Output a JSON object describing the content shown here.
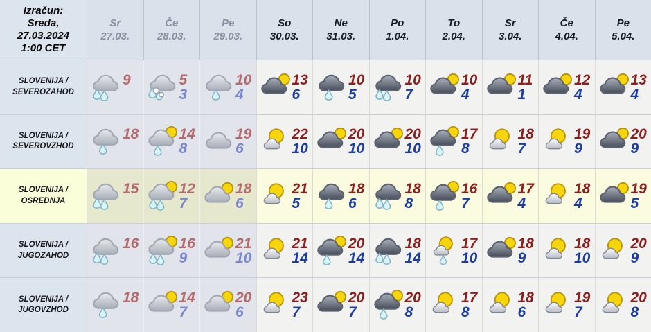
{
  "header": {
    "computed": [
      "Izračun:",
      "Sreda,",
      "27.03.2024",
      "1:00 CET"
    ]
  },
  "columns": [
    {
      "day": "Sr",
      "date": "27.03.",
      "past": true
    },
    {
      "day": "Če",
      "date": "28.03.",
      "past": true
    },
    {
      "day": "Pe",
      "date": "29.03.",
      "past": true
    },
    {
      "day": "So",
      "date": "30.03.",
      "past": false
    },
    {
      "day": "Ne",
      "date": "31.03.",
      "past": false
    },
    {
      "day": "Po",
      "date": "1.04.",
      "past": false
    },
    {
      "day": "To",
      "date": "2.04.",
      "past": false
    },
    {
      "day": "Sr",
      "date": "3.04.",
      "past": false
    },
    {
      "day": "Če",
      "date": "4.04.",
      "past": false
    },
    {
      "day": "Pe",
      "date": "5.04.",
      "past": false
    }
  ],
  "rows": [
    {
      "region": [
        "SLOVENIJA /",
        "SEVEROZAHOD"
      ],
      "highlight": false,
      "cells": [
        {
          "icon": "cloud-rain-2",
          "tmax": "9",
          "tmin": ""
        },
        {
          "icon": "cloud-sleet",
          "tmax": "5",
          "tmin": "3"
        },
        {
          "icon": "cloud-rain-1",
          "tmax": "10",
          "tmin": "4"
        },
        {
          "icon": "cloud-sun",
          "tmax": "13",
          "tmin": "6"
        },
        {
          "icon": "cloud-rain-1",
          "tmax": "10",
          "tmin": "5"
        },
        {
          "icon": "cloud-rain-2",
          "tmax": "10",
          "tmin": "7"
        },
        {
          "icon": "cloud-sun",
          "tmax": "10",
          "tmin": "4"
        },
        {
          "icon": "cloud-sun",
          "tmax": "11",
          "tmin": "1"
        },
        {
          "icon": "cloud-sun",
          "tmax": "12",
          "tmin": "4"
        },
        {
          "icon": "cloud-sun",
          "tmax": "13",
          "tmin": "4"
        }
      ]
    },
    {
      "region": [
        "SLOVENIJA /",
        "SEVEROVZHOD"
      ],
      "highlight": false,
      "cells": [
        {
          "icon": "cloud-rain-1",
          "tmax": "18",
          "tmin": ""
        },
        {
          "icon": "cloud-sun-rain-1",
          "tmax": "14",
          "tmin": "8"
        },
        {
          "icon": "cloud",
          "tmax": "19",
          "tmin": "6"
        },
        {
          "icon": "sun-cloud",
          "tmax": "22",
          "tmin": "10"
        },
        {
          "icon": "cloud-sun",
          "tmax": "20",
          "tmin": "10"
        },
        {
          "icon": "cloud-sun",
          "tmax": "20",
          "tmin": "10"
        },
        {
          "icon": "cloud-sun-rain-1",
          "tmax": "17",
          "tmin": "8"
        },
        {
          "icon": "sun-cloud",
          "tmax": "18",
          "tmin": "7"
        },
        {
          "icon": "sun-cloud",
          "tmax": "19",
          "tmin": "9"
        },
        {
          "icon": "cloud-sun",
          "tmax": "20",
          "tmin": "9"
        }
      ]
    },
    {
      "region": [
        "SLOVENIJA /",
        "OSREDNJA"
      ],
      "highlight": true,
      "cells": [
        {
          "icon": "cloud-rain-2",
          "tmax": "15",
          "tmin": ""
        },
        {
          "icon": "cloud-sun-rain-2",
          "tmax": "12",
          "tmin": "7"
        },
        {
          "icon": "cloud-sun",
          "tmax": "18",
          "tmin": "6"
        },
        {
          "icon": "sun-cloud",
          "tmax": "21",
          "tmin": "5"
        },
        {
          "icon": "cloud-rain-1",
          "tmax": "18",
          "tmin": "6"
        },
        {
          "icon": "cloud-rain-2",
          "tmax": "18",
          "tmin": "8"
        },
        {
          "icon": "cloud-sun-rain-1",
          "tmax": "16",
          "tmin": "7"
        },
        {
          "icon": "cloud-sun",
          "tmax": "17",
          "tmin": "4"
        },
        {
          "icon": "sun-cloud",
          "tmax": "18",
          "tmin": "4"
        },
        {
          "icon": "cloud-sun",
          "tmax": "19",
          "tmin": "5"
        }
      ]
    },
    {
      "region": [
        "SLOVENIJA /",
        "JUGOZAHOD"
      ],
      "highlight": false,
      "cells": [
        {
          "icon": "cloud-rain-2",
          "tmax": "16",
          "tmin": ""
        },
        {
          "icon": "cloud-sun-rain-2",
          "tmax": "16",
          "tmin": "9"
        },
        {
          "icon": "cloud-sun",
          "tmax": "21",
          "tmin": "10"
        },
        {
          "icon": "sun-cloud",
          "tmax": "21",
          "tmin": "14"
        },
        {
          "icon": "cloud-sun-rain-1",
          "tmax": "20",
          "tmin": "14"
        },
        {
          "icon": "cloud-rain-2",
          "tmax": "18",
          "tmin": "14"
        },
        {
          "icon": "sun-cloud-rain-1",
          "tmax": "17",
          "tmin": "10"
        },
        {
          "icon": "cloud-sun",
          "tmax": "18",
          "tmin": "9"
        },
        {
          "icon": "sun-cloud",
          "tmax": "18",
          "tmin": "10"
        },
        {
          "icon": "sun-cloud",
          "tmax": "20",
          "tmin": "9"
        }
      ]
    },
    {
      "region": [
        "SLOVENIJA /",
        "JUGOVZHOD"
      ],
      "highlight": false,
      "cells": [
        {
          "icon": "cloud-rain-1",
          "tmax": "18",
          "tmin": ""
        },
        {
          "icon": "cloud-sun",
          "tmax": "14",
          "tmin": "7"
        },
        {
          "icon": "cloud-sun",
          "tmax": "20",
          "tmin": "6"
        },
        {
          "icon": "sun-cloud",
          "tmax": "23",
          "tmin": "7"
        },
        {
          "icon": "cloud-sun",
          "tmax": "20",
          "tmin": "7"
        },
        {
          "icon": "cloud-sun-rain-1",
          "tmax": "20",
          "tmin": "8"
        },
        {
          "icon": "sun-cloud",
          "tmax": "17",
          "tmin": "8"
        },
        {
          "icon": "sun-cloud",
          "tmax": "18",
          "tmin": "6"
        },
        {
          "icon": "sun-cloud",
          "tmax": "19",
          "tmin": "7"
        },
        {
          "icon": "sun-cloud",
          "tmax": "20",
          "tmin": "8"
        }
      ]
    }
  ],
  "colors": {
    "tmax": "#8a1f1f",
    "tmin": "#1c3ca0",
    "tmax_past": "#b4696b",
    "tmin_past": "#7b87cd",
    "header_bg": "#dae1eb",
    "label_bg": "#dce4ee",
    "past_col_bg": "#e1e4ea",
    "future_col_bg": "#f2f2f1",
    "highlight_label_bg": "#fbffd9",
    "highlight_bg": "#fafbdf",
    "highlight_past_bg": "#e6e8ce",
    "sun": "#f6d60a",
    "raindrop": "#d8f3f9"
  }
}
